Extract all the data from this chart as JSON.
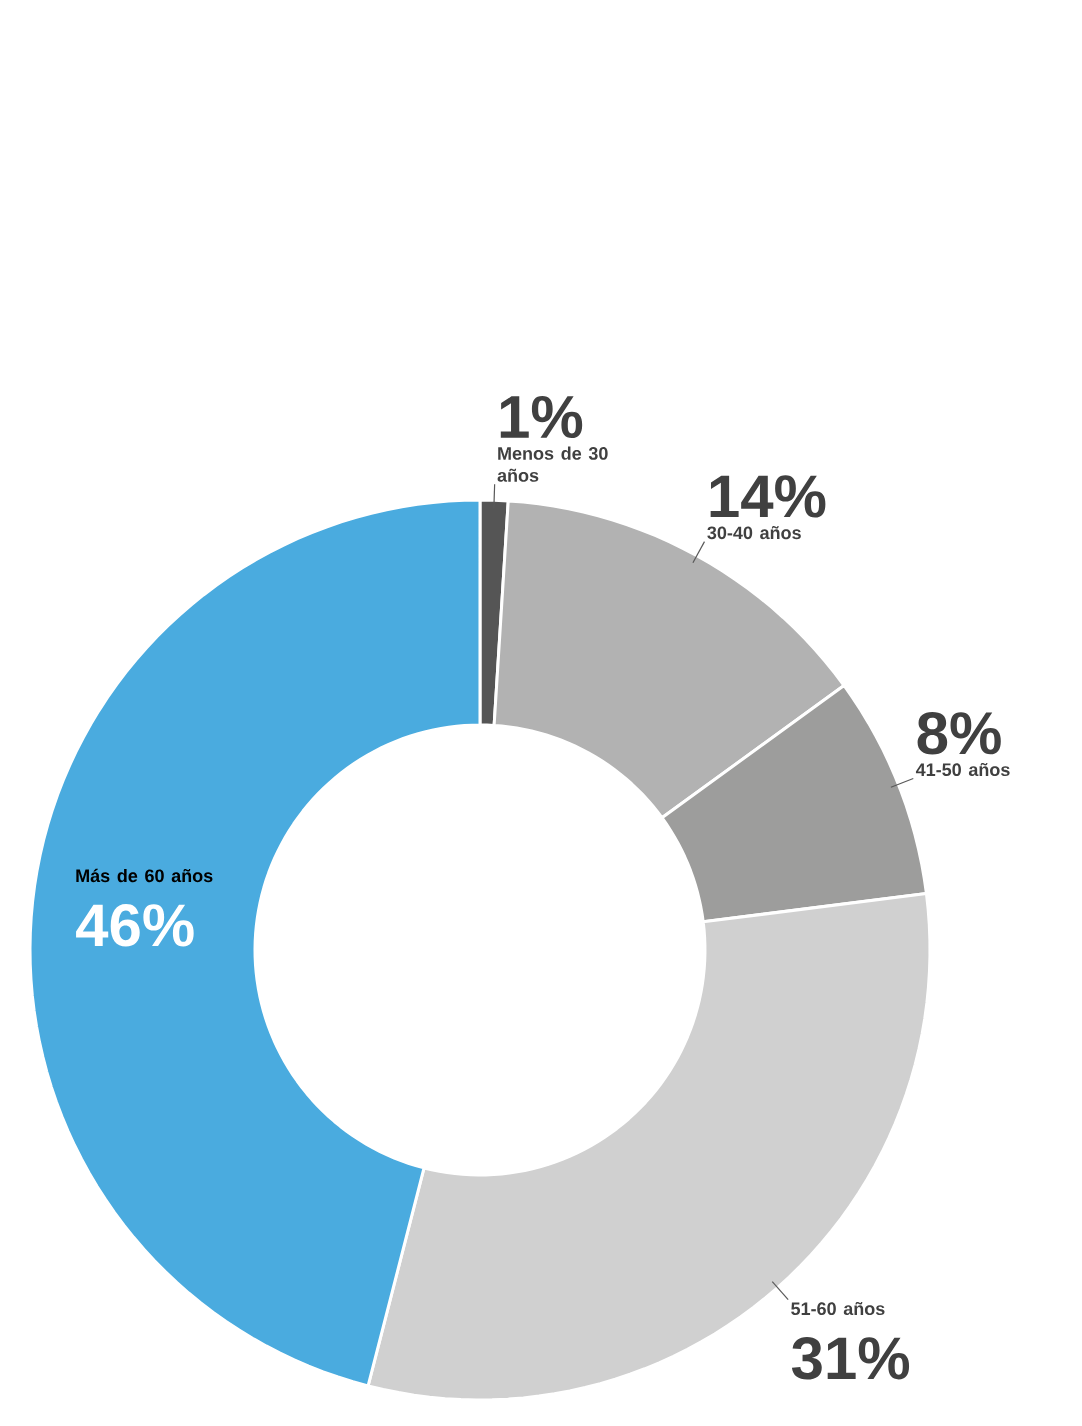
{
  "chart_data": {
    "type": "donut",
    "categories": [
      "Menos de 30 años",
      "30-40 años",
      "41-50 años",
      "51-60 años",
      "Más de 60 años"
    ],
    "values": [
      1,
      14,
      8,
      31,
      46
    ],
    "colors": [
      "#555555",
      "#b2b2b2",
      "#9d9d9c",
      "#d0d0d0",
      "#4aabdf"
    ],
    "value_labels": [
      "1%",
      "14%",
      "8%",
      "31%",
      "46%"
    ]
  }
}
